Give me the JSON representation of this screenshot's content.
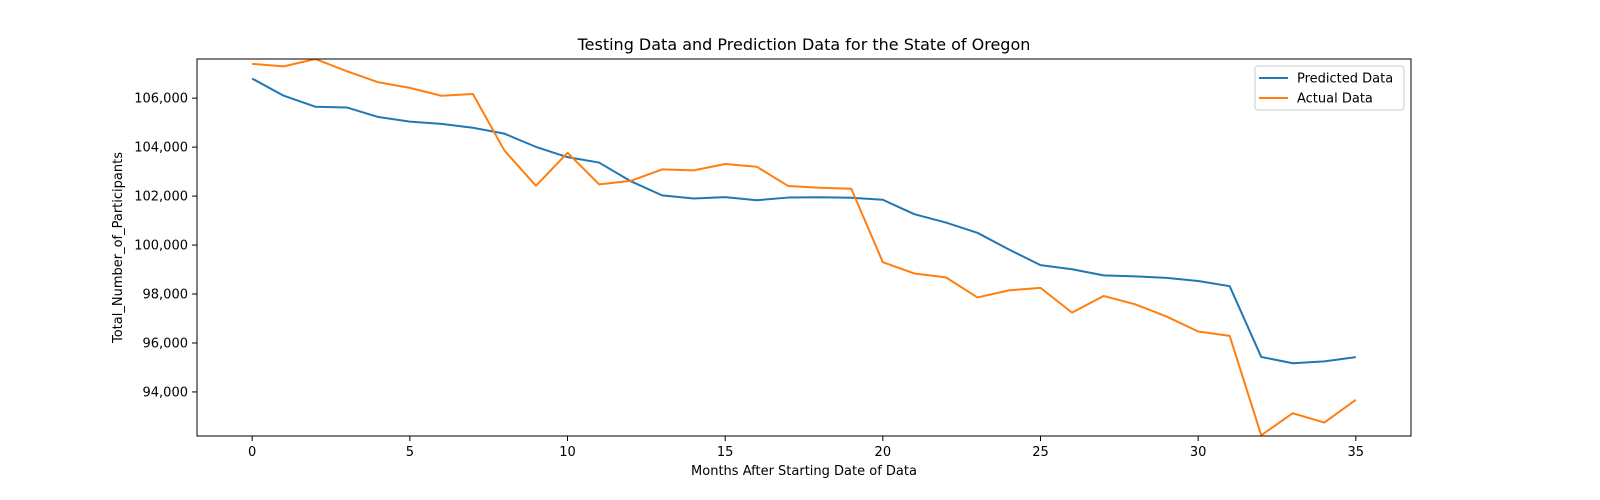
{
  "chart_data": {
    "type": "line",
    "title": "Testing Data and Prediction Data for the State of Oregon",
    "xlabel": "Months After Starting Date of Data",
    "ylabel": "Total_Number_of_Participants",
    "xlim": [
      -1.75,
      36.75
    ],
    "ylim": [
      92200,
      107600
    ],
    "x_ticks": [
      0,
      5,
      10,
      15,
      20,
      25,
      30,
      35
    ],
    "y_ticks": [
      94000,
      96000,
      98000,
      100000,
      102000,
      104000,
      106000
    ],
    "x_tick_labels": [
      "0",
      "5",
      "10",
      "15",
      "20",
      "25",
      "30",
      "35"
    ],
    "y_tick_labels": [
      "94,000",
      "96,000",
      "98,000",
      "100,000",
      "102,000",
      "104,000",
      "106,000"
    ],
    "grid": false,
    "legend_position": "top-right",
    "x": [
      0,
      1,
      2,
      3,
      4,
      5,
      6,
      7,
      8,
      9,
      10,
      11,
      12,
      13,
      14,
      15,
      16,
      17,
      18,
      19,
      20,
      21,
      22,
      23,
      24,
      25,
      26,
      27,
      28,
      29,
      30,
      31,
      32,
      33,
      34,
      35
    ],
    "series": [
      {
        "name": "Predicted Data",
        "color": "#1f77b4",
        "values": [
          106800,
          106100,
          105650,
          105620,
          105230,
          105040,
          104950,
          104790,
          104550,
          104010,
          103590,
          103370,
          102610,
          102030,
          101900,
          101960,
          101830,
          101940,
          101950,
          101930,
          101850,
          101260,
          100920,
          100500,
          99820,
          99180,
          99010,
          98760,
          98720,
          98660,
          98530,
          98320,
          95430,
          95170,
          95250,
          95420
        ]
      },
      {
        "name": "Actual Data",
        "color": "#ff7f0e",
        "values": [
          107400,
          107300,
          107600,
          107100,
          106650,
          106420,
          106100,
          106170,
          103860,
          102420,
          103770,
          102480,
          102620,
          103090,
          103050,
          103310,
          103200,
          102410,
          102340,
          102300,
          99300,
          98840,
          98680,
          97860,
          98150,
          98250,
          97240,
          97920,
          97580,
          97080,
          96470,
          96290,
          92230,
          93130,
          92750,
          93680
        ]
      }
    ]
  }
}
